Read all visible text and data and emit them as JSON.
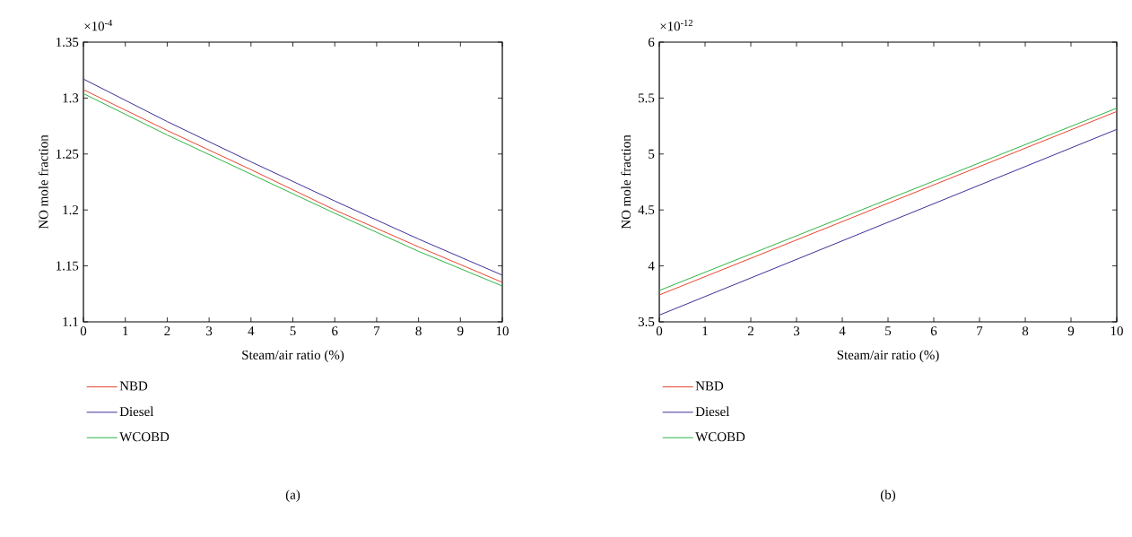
{
  "chart_data": [
    {
      "type": "line",
      "xlabel": "Steam/air ratio (%)",
      "ylabel": "NO mole fraction",
      "annotations": [
        "×10$^{-4}$",
        "(a)"
      ],
      "x": [
        0,
        2,
        4,
        6,
        8,
        10
      ],
      "series": [
        {
          "name": "NBD",
          "color": "#e8432e",
          "values": [
            1.3075,
            1.271,
            1.236,
            1.2,
            1.167,
            1.1353
          ]
        },
        {
          "name": "Diesel",
          "color": "#3a2f96",
          "values": [
            1.317,
            1.279,
            1.243,
            1.208,
            1.174,
            1.1417
          ]
        },
        {
          "name": "WCOBD",
          "color": "#2cb544",
          "values": [
            1.304,
            1.267,
            1.232,
            1.197,
            1.163,
            1.132
          ]
        }
      ],
      "xlim": [
        0,
        10
      ],
      "ylim": [
        1.1,
        1.35
      ],
      "xticks": [
        0,
        1,
        2,
        3,
        4,
        5,
        6,
        7,
        8,
        9,
        10
      ],
      "yticks": [
        1.1,
        1.15,
        1.2,
        1.25,
        1.3,
        1.35
      ],
      "legend": "bottom left",
      "grid": false,
      "line_style": "solid",
      "marker": "none"
    },
    {
      "type": "line",
      "xlabel": "Steam/air ratio (%)",
      "ylabel": "NO mole fraction",
      "annotations": [
        "×10$^{-12}$",
        "(b)"
      ],
      "x": [
        0,
        10
      ],
      "series": [
        {
          "name": "NBD",
          "color": "#e8432e",
          "values": [
            3.74,
            5.38
          ]
        },
        {
          "name": "Diesel",
          "color": "#3a2f96",
          "values": [
            3.56,
            5.22
          ]
        },
        {
          "name": "WCOBD",
          "color": "#2cb544",
          "values": [
            3.78,
            5.41
          ]
        }
      ],
      "xlim": [
        0,
        10
      ],
      "ylim": [
        3.5,
        6
      ],
      "xticks": [
        0,
        1,
        2,
        3,
        4,
        5,
        6,
        7,
        8,
        9,
        10
      ],
      "yticks": [
        3.5,
        4,
        4.5,
        5,
        5.5,
        6
      ],
      "legend": "bottom left",
      "grid": false,
      "line_style": "solid",
      "marker": "none"
    }
  ]
}
